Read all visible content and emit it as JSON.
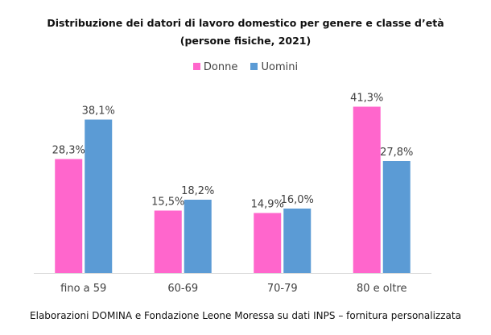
{
  "chart_data": {
    "type": "bar",
    "title": "Distribuzione dei datori di lavoro domestico per genere e classe d’età",
    "subtitle": "(persone fisiche, 2021)",
    "categories": [
      "fino a 59",
      "60-69",
      "70-79",
      "80 e oltre"
    ],
    "series": [
      {
        "name": "Donne",
        "color": "#FF66CC",
        "values": [
          28.3,
          15.5,
          14.9,
          41.3
        ],
        "labels": [
          "28,3%",
          "15,5%",
          "14,9%",
          "41,3%"
        ]
      },
      {
        "name": "Uomini",
        "color": "#5B9BD5",
        "values": [
          38.1,
          18.2,
          16.0,
          27.8
        ],
        "labels": [
          "38,1%",
          "18,2%",
          "16,0%",
          "27,8%"
        ]
      }
    ],
    "xlabel": "",
    "ylabel": "",
    "ylim": [
      0,
      45
    ],
    "grid": false,
    "legend": "top-center",
    "value_format": "percent, comma decimal"
  },
  "source": "Elaborazioni DOMINA e Fondazione Leone Moressa su dati INPS – fornitura personalizzata"
}
